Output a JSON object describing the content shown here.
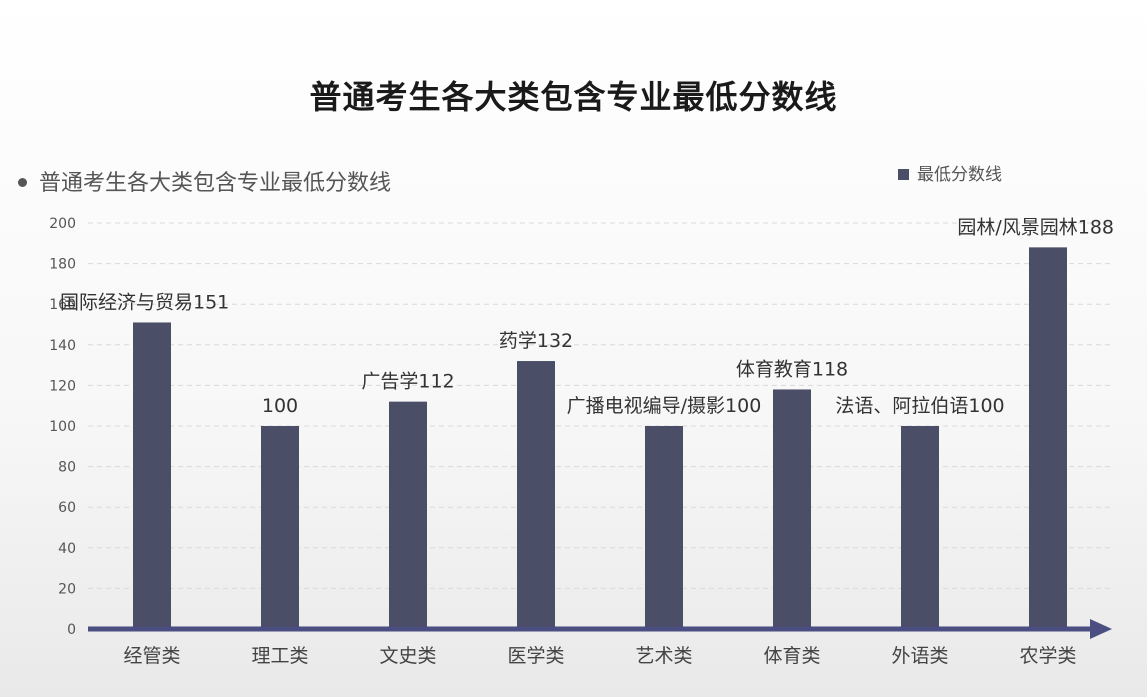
{
  "chart_data": {
    "type": "bar",
    "title": "普通考生各大类包含专业最低分数线",
    "subtitle": "普通考生各大类包含专业最低分数线",
    "legend": {
      "label": "最低分数线",
      "placement": "top-right"
    },
    "categories": [
      "经管类",
      "理工类",
      "文史类",
      "医学类",
      "艺术类",
      "体育类",
      "外语类",
      "农学类"
    ],
    "series": [
      {
        "name": "最低分数线",
        "values": [
          151,
          100,
          112,
          132,
          100,
          118,
          100,
          188
        ]
      }
    ],
    "data_labels": [
      "国际经济与贸易151",
      "100",
      "广告学112",
      "药学132",
      "广播电视编导/摄影100",
      "体育教育118",
      "法语、阿拉伯语100",
      "园林/风景园林188"
    ],
    "yticks": [
      0,
      20,
      40,
      60,
      80,
      100,
      120,
      140,
      160,
      180,
      200
    ],
    "ylim": [
      0,
      200
    ],
    "grid": true,
    "colors": {
      "bar": "#4a4e66",
      "axis": "#4a4e80",
      "grid": "#d9d9d9"
    }
  }
}
